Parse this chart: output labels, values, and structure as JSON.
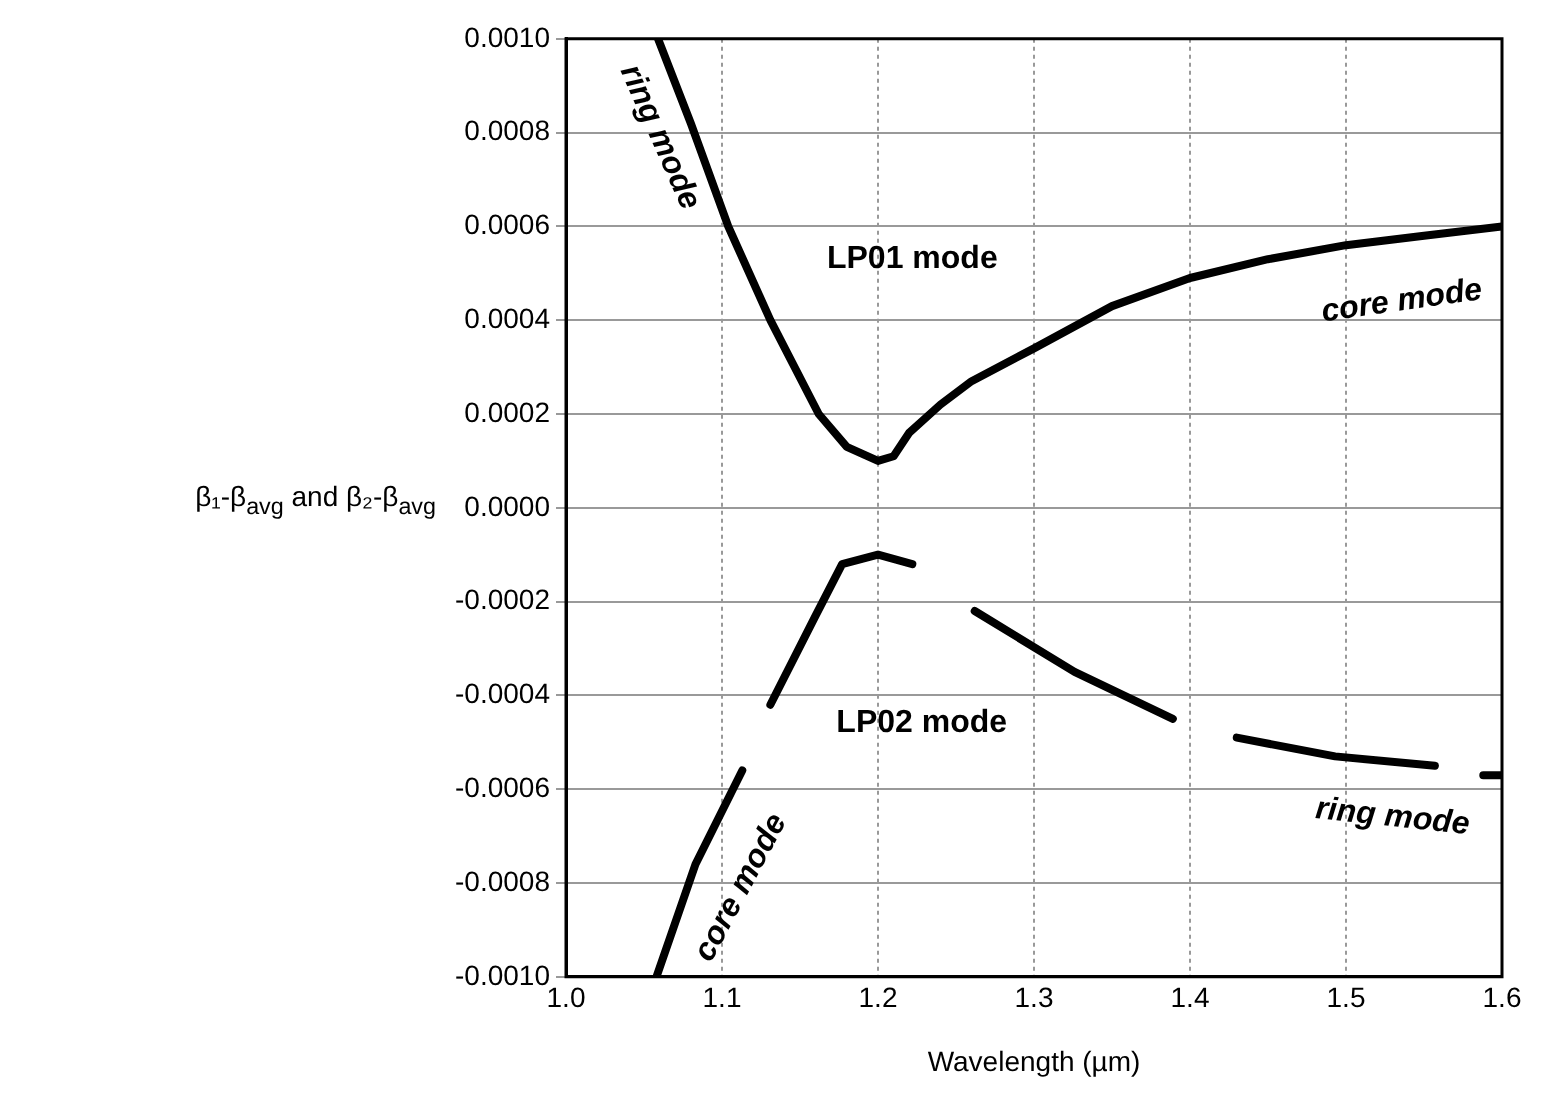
{
  "chart_data": {
    "type": "line",
    "xlabel": "Wavelength (µm)",
    "ylabel": "β₁-β$_{avg}$ and β₂-β$_{avg}$",
    "xlim": [
      1.0,
      1.6
    ],
    "xticks": [
      {
        "value": 1.0,
        "label": "1.0"
      },
      {
        "value": 1.1,
        "label": "1.1"
      },
      {
        "value": 1.2,
        "label": "1.2"
      },
      {
        "value": 1.3,
        "label": "1.3"
      },
      {
        "value": 1.4,
        "label": "1.4"
      },
      {
        "value": 1.5,
        "label": "1.5"
      },
      {
        "value": 1.6,
        "label": "1.6"
      }
    ],
    "ylim": [
      -0.001,
      0.001
    ],
    "yticks": [
      {
        "value": -0.001,
        "label": "-0.0010"
      },
      {
        "value": -0.0008,
        "label": "-0.0008"
      },
      {
        "value": -0.0006,
        "label": "-0.0006"
      },
      {
        "value": -0.0004,
        "label": "-0.0004"
      },
      {
        "value": -0.0002,
        "label": "-0.0002"
      },
      {
        "value": 0,
        "label": "0.0000"
      },
      {
        "value": 0.0002,
        "label": "0.0002"
      },
      {
        "value": 0.0004,
        "label": "0.0004"
      },
      {
        "value": 0.0006,
        "label": "0.0006"
      },
      {
        "value": 0.0008,
        "label": "0.0008"
      },
      {
        "value": 0.001,
        "label": "0.0010"
      }
    ],
    "grid": true,
    "marker": "none",
    "line_style": "solid",
    "series": [
      {
        "color": "#000000",
        "x": [
          1.059,
          1.08,
          1.104,
          1.131,
          1.162,
          1.18,
          1.2,
          1.21,
          1.22,
          1.24,
          1.26,
          1.3,
          1.35,
          1.4,
          1.45,
          1.5,
          1.55,
          1.6
        ],
        "values": [
          0.001,
          0.00082,
          0.0006,
          0.0004,
          0.0002,
          0.00013,
          0.0001,
          0.00011,
          0.00016,
          0.00022,
          0.00027,
          0.00034,
          0.00043,
          0.00049,
          0.00053,
          0.00056,
          0.00058,
          0.0006
        ]
      },
      {
        "color": "#000000",
        "x": [
          1.058,
          1.083,
          1.113,
          1.12,
          1.131,
          1.16,
          1.177,
          1.2,
          1.222,
          1.24,
          1.262,
          1.326,
          1.389,
          1.41,
          1.43,
          1.493,
          1.557,
          1.575,
          1.588,
          1.6
        ],
        "values": [
          -0.001,
          -0.00076,
          -0.00056,
          null,
          -0.00042,
          -0.00023,
          -0.00012,
          -0.0001,
          -0.00012,
          null,
          -0.00022,
          -0.00035,
          -0.00045,
          null,
          -0.00049,
          -0.00053,
          -0.00055,
          null,
          -0.00057,
          -0.00057
        ]
      }
    ],
    "annotations": [
      "ring mode",
      "LP01 mode",
      "core mode",
      "LP02 mode",
      "core mode",
      "ring mode"
    ]
  }
}
